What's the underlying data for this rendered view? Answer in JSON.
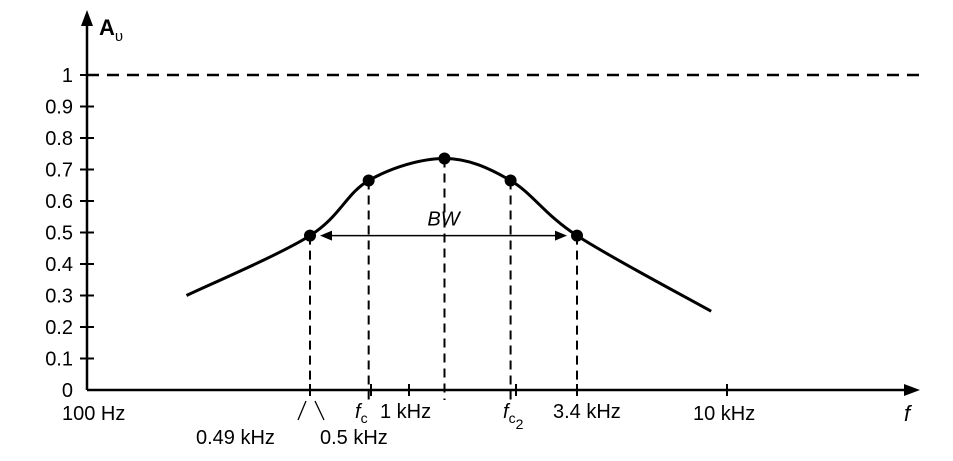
{
  "chart_data": {
    "type": "line",
    "ylabel": "A",
    "ylabel_sub": "υ",
    "xlabel": "f",
    "ylim": [
      0,
      1
    ],
    "y_ticks": [
      "0",
      "0.1",
      "0.2",
      "0.3",
      "0.4",
      "0.5",
      "0.6",
      "0.7",
      "0.8",
      "0.9",
      "1"
    ],
    "x_tick_labels": {
      "t100": "100 Hz",
      "t049": "0.49 kHz",
      "t05": "0.5 kHz",
      "fc1": "f",
      "fc1_sub": "c",
      "t1k": "1 kHz",
      "fc2": "f",
      "fc2_sub": "c",
      "fc2_subsub": "2",
      "t34": "3.4 kHz",
      "t10k": "10 kHz"
    },
    "reference_line": {
      "y": 1,
      "style": "dashed"
    },
    "series": [
      {
        "curve": [
          {
            "x": 0.2,
            "y": 0.3
          },
          {
            "x": 0.49,
            "y": 0.49
          },
          {
            "x": 0.75,
            "y": 0.665
          },
          {
            "x": 1.3,
            "y": 0.735
          },
          {
            "x": 2.1,
            "y": 0.665
          },
          {
            "x": 3.4,
            "y": 0.49
          },
          {
            "x": 9.0,
            "y": 0.25
          }
        ]
      }
    ],
    "marked_points": [
      {
        "x": 0.49,
        "y": 0.49
      },
      {
        "x": 0.75,
        "y": 0.665
      },
      {
        "x": 1.3,
        "y": 0.735
      },
      {
        "x": 2.1,
        "y": 0.665
      },
      {
        "x": 3.4,
        "y": 0.49
      }
    ],
    "annotations": {
      "bandwidth": {
        "label": "BW",
        "from_x": 0.49,
        "to_x": 3.4,
        "y": 0.49
      }
    },
    "grid": false
  }
}
